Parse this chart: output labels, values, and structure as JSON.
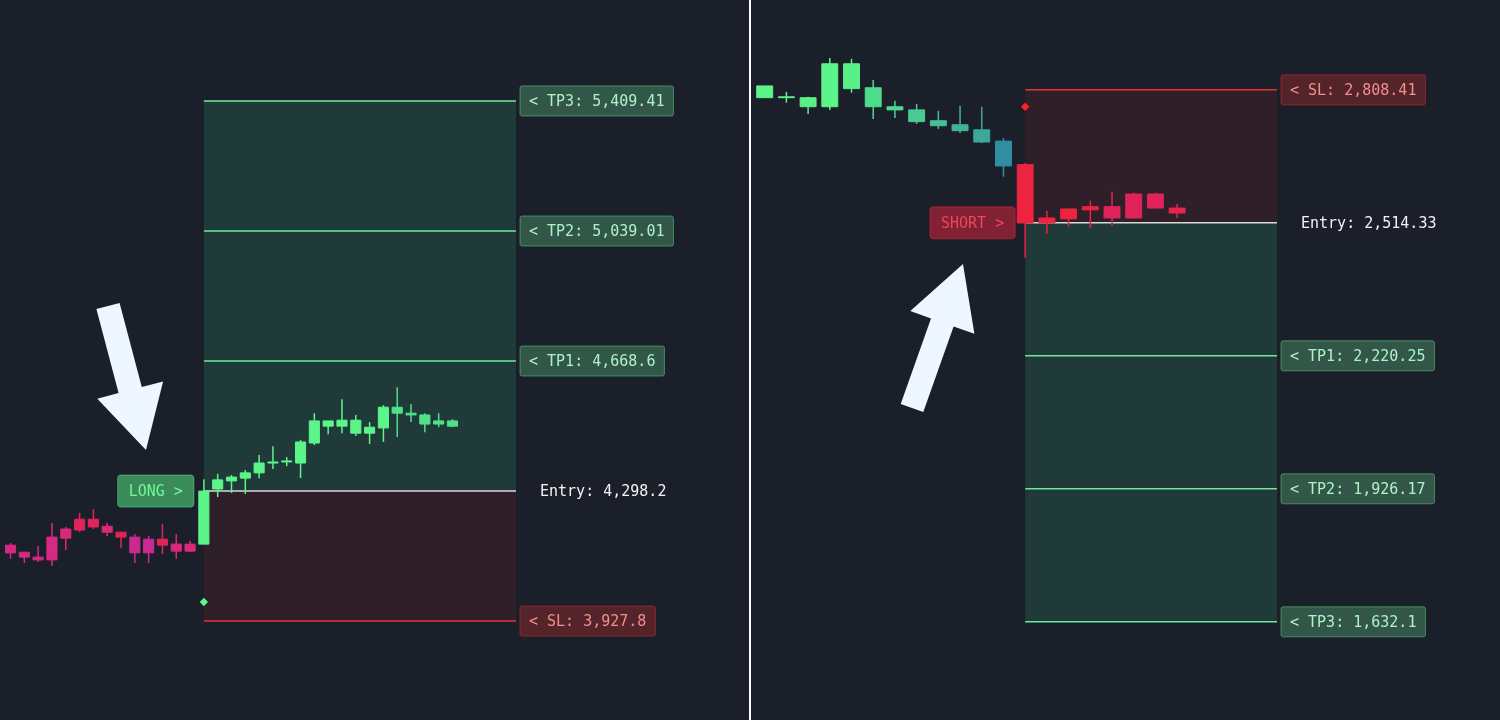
{
  "chart_data": [
    {
      "type": "candlestick",
      "categories": [
        null,
        null,
        null,
        null,
        null,
        null,
        null,
        null,
        null,
        null,
        null,
        null,
        null,
        null,
        null,
        null,
        null,
        null,
        null,
        null,
        null,
        null,
        null,
        null,
        null,
        null,
        null,
        null,
        null,
        null,
        null,
        null,
        null
      ],
      "ohlc": [
        [
          4144,
          4150,
          4105,
          4122
        ],
        [
          4124,
          4124,
          4093,
          4110
        ],
        [
          4110,
          4142,
          4096,
          4102
        ],
        [
          4167,
          4207,
          4085,
          4102
        ],
        [
          4190,
          4196,
          4130,
          4164
        ],
        [
          4218,
          4236,
          4181,
          4187
        ],
        [
          4218,
          4247,
          4190,
          4196
        ],
        [
          4198,
          4207,
          4170,
          4181
        ],
        [
          4181,
          4181,
          4136,
          4167
        ],
        [
          4167,
          4176,
          4093,
          4122
        ],
        [
          4161,
          4170,
          4093,
          4122
        ],
        [
          4161,
          4204,
          4119,
          4144
        ],
        [
          4147,
          4176,
          4105,
          4127
        ],
        [
          4147,
          4156,
          4124,
          4127
        ],
        [
          4147,
          4332,
          4147,
          4298
        ],
        [
          4304,
          4347,
          4281,
          4330
        ],
        [
          4327,
          4344,
          4293,
          4338
        ],
        [
          4335,
          4358,
          4290,
          4350
        ],
        [
          4350,
          4401,
          4335,
          4378
        ],
        [
          4378,
          4426,
          4361,
          4381
        ],
        [
          4381,
          4395,
          4369,
          4384
        ],
        [
          4378,
          4444,
          4335,
          4438
        ],
        [
          4435,
          4520,
          4429,
          4498
        ],
        [
          4483,
          4498,
          4460,
          4498
        ],
        [
          4483,
          4560,
          4463,
          4500
        ],
        [
          4463,
          4515,
          4455,
          4500
        ],
        [
          4463,
          4495,
          4432,
          4480
        ],
        [
          4478,
          4543,
          4438,
          4537
        ],
        [
          4520,
          4594,
          4452,
          4537
        ],
        [
          4515,
          4546,
          4495,
          4520
        ],
        [
          4489,
          4520,
          4466,
          4515
        ],
        [
          4489,
          4520,
          4480,
          4498
        ],
        [
          4483,
          4503,
          4480,
          4498
        ]
      ],
      "colors": [
        "#d42a85",
        "#d42a85",
        "#d42a85",
        "#d42a85",
        "#d92a78",
        "#e0245a",
        "#e0245a",
        "#d92a78",
        "#e0245a",
        "#c92a8f",
        "#c92a8f",
        "#e0245a",
        "#d92a78",
        "#d92a78",
        "#5cf58a",
        "#5cf58a",
        "#5cf58a",
        "#5cf58a",
        "#5cf58a",
        "#5cf58a",
        "#5cf58a",
        "#5cf58a",
        "#5cf58a",
        "#5cf58a",
        "#5cf58a",
        "#5cf58a",
        "#5cf58a",
        "#5cf58a",
        "#52e08a",
        "#52e08a",
        "#52e08a",
        "#52e08a",
        "#52e08a"
      ],
      "series": [
        {
          "type": "scatter",
          "marker": "diamond",
          "color": "#5cf58a",
          "values": [
            null,
            null,
            null,
            null,
            null,
            null,
            null,
            null,
            null,
            null,
            null,
            null,
            null,
            null,
            3982,
            null,
            null,
            null,
            null,
            null,
            null,
            null,
            null,
            null,
            null,
            null,
            null,
            null,
            null,
            null,
            null,
            null,
            null
          ]
        }
      ],
      "ylim": [
        3646,
        5697
      ],
      "tick_labels": false,
      "ref_lines": [
        {
          "axis": "y",
          "value": 5409.41,
          "label": "< TP3: 5,409.41",
          "color": "#6ee89a"
        },
        {
          "axis": "y",
          "value": 5039.01,
          "label": "< TP2: 5,039.01",
          "color": "#6ee89a"
        },
        {
          "axis": "y",
          "value": 4668.6,
          "label": "< TP1: 4,668.6",
          "color": "#6ee89a"
        },
        {
          "axis": "y",
          "value": 4298.2,
          "label": "Entry: 4,298.2",
          "color": "#d8d8d8"
        },
        {
          "axis": "y",
          "value": 3927.8,
          "label": "< SL: 3,927.8",
          "color": "#e8332e"
        }
      ],
      "bands": [
        {
          "axis": "y",
          "from": 4298.2,
          "to": 5409.41,
          "color": "#1f3a38"
        },
        {
          "axis": "y",
          "from": 4298.2,
          "to": 3927.8,
          "color": "#2e1f29"
        }
      ],
      "annotations": [
        "LONG >"
      ]
    },
    {
      "type": "candlestick",
      "categories": [
        null,
        null,
        null,
        null,
        null,
        null,
        null,
        null,
        null,
        null,
        null,
        null,
        null,
        null,
        null,
        null,
        null,
        null,
        null,
        null
      ],
      "ohlc": [
        [
          2791,
          2817,
          2791,
          2817
        ],
        [
          2791,
          2804,
          2780,
          2793
        ],
        [
          2771,
          2793,
          2755,
          2791
        ],
        [
          2771,
          2879,
          2764,
          2866
        ],
        [
          2811,
          2877,
          2802,
          2866
        ],
        [
          2771,
          2830,
          2744,
          2813
        ],
        [
          2764,
          2784,
          2746,
          2771
        ],
        [
          2738,
          2777,
          2733,
          2764
        ],
        [
          2729,
          2762,
          2722,
          2740
        ],
        [
          2718,
          2773,
          2713,
          2731
        ],
        [
          2693,
          2771,
          2691,
          2720
        ],
        [
          2640,
          2702,
          2616,
          2695
        ],
        [
          2643,
          2647,
          2437,
          2514
        ],
        [
          2525,
          2541,
          2490,
          2514
        ],
        [
          2545,
          2545,
          2506,
          2523
        ],
        [
          2550,
          2563,
          2503,
          2543
        ],
        [
          2550,
          2583,
          2508,
          2525
        ],
        [
          2578,
          2581,
          2523,
          2525
        ],
        [
          2578,
          2581,
          2547,
          2547
        ],
        [
          2547,
          2556,
          2525,
          2536
        ]
      ],
      "colors": [
        "#5cf58a",
        "#5cf58a",
        "#59f087",
        "#5cf58a",
        "#59f087",
        "#4fdc8c",
        "#4fd68f",
        "#4acb92",
        "#45c095",
        "#40b598",
        "#3ba99a",
        "#2f8fa0",
        "#ec2440",
        "#ec2440",
        "#ec2440",
        "#ec2440",
        "#e0245a",
        "#e0245a",
        "#e0245a",
        "#e8244f"
      ],
      "series": [
        {
          "type": "scatter",
          "marker": "diamond",
          "color": "#ff2020",
          "values": [
            null,
            null,
            null,
            null,
            null,
            null,
            null,
            null,
            null,
            null,
            null,
            null,
            2771,
            null,
            null,
            null,
            null,
            null,
            null,
            null
          ]
        }
      ],
      "ylim": [
        1415,
        3007
      ],
      "tick_labels": false,
      "ref_lines": [
        {
          "axis": "y",
          "value": 2808.41,
          "label": "< SL: 2,808.41",
          "color": "#e8332e"
        },
        {
          "axis": "y",
          "value": 2514.33,
          "label": "Entry: 2,514.33",
          "color": "#d8d8d8"
        },
        {
          "axis": "y",
          "value": 2220.25,
          "label": "< TP1: 2,220.25",
          "color": "#6ee89a"
        },
        {
          "axis": "y",
          "value": 1926.17,
          "label": "< TP2: 1,926.17",
          "color": "#6ee89a"
        },
        {
          "axis": "y",
          "value": 1632.1,
          "label": "< TP3: 1,632.1",
          "color": "#6ee89a"
        }
      ],
      "bands": [
        {
          "axis": "y",
          "from": 2514.33,
          "to": 2808.41,
          "color": "#2e1f29"
        },
        {
          "axis": "y",
          "from": 2514.33,
          "to": 1632.1,
          "color": "#1f3a38"
        }
      ],
      "annotations": [
        "SHORT >"
      ]
    }
  ]
}
